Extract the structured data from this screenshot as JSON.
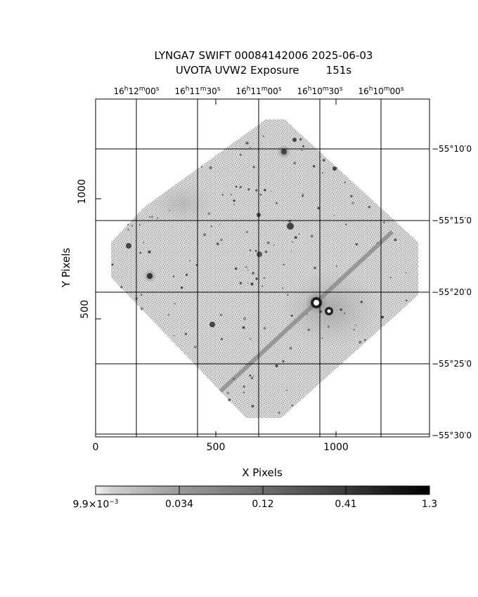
{
  "header": {
    "title_line1": "LYNGA7 SWIFT 00084142006 2025-06-03",
    "title_line2": "UVOTA UVW2 Exposure        151s"
  },
  "ra_labels": [
    {
      "h": "16",
      "m": "12",
      "s": "00"
    },
    {
      "h": "16",
      "m": "11",
      "s": "30"
    },
    {
      "h": "16",
      "m": "11",
      "s": "00"
    },
    {
      "h": "16",
      "m": "10",
      "s": "30"
    },
    {
      "h": "16",
      "m": "10",
      "s": "00"
    }
  ],
  "dec_labels": [
    "−55°10′0",
    "−55°15′0",
    "−55°20′0",
    "−55°25′0",
    "−55°30′0"
  ],
  "axes": {
    "xlabel": "X Pixels",
    "ylabel": "Y Pixels",
    "xticks": [
      "0",
      "500",
      "1000"
    ],
    "yticks": [
      "1000",
      "500"
    ]
  },
  "colorbar": {
    "min_base": "9.9×10",
    "min_exp": "−3",
    "ticks": [
      "0.034",
      "0.12",
      "0.41",
      "1.3"
    ]
  }
}
